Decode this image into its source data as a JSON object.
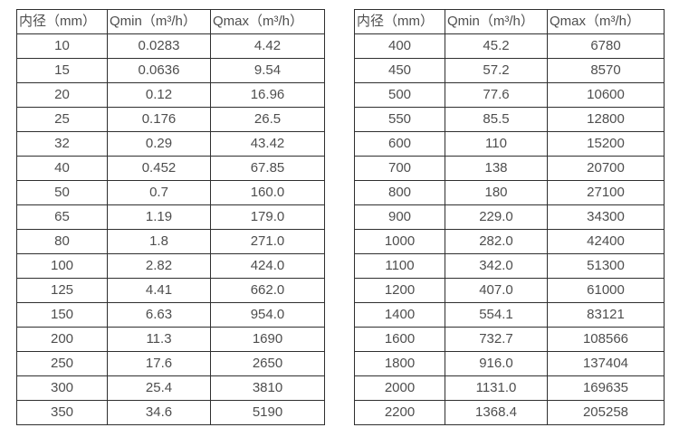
{
  "page": {
    "background_color": "#ffffff",
    "border_color": "#2f2f2f",
    "text_color": "#4e4e4e"
  },
  "tables": [
    {
      "name": "flow-range-table-small-diameters",
      "headers": [
        "内径（mm）",
        "Qmin（m³/h）",
        "Qmax（m³/h）"
      ],
      "rows": [
        [
          "10",
          "0.0283",
          "4.42"
        ],
        [
          "15",
          "0.0636",
          "9.54"
        ],
        [
          "20",
          "0.12",
          "16.96"
        ],
        [
          "25",
          "0.176",
          "26.5"
        ],
        [
          "32",
          "0.29",
          "43.42"
        ],
        [
          "40",
          "0.452",
          "67.85"
        ],
        [
          "50",
          "0.7",
          "160.0"
        ],
        [
          "65",
          "1.19",
          "179.0"
        ],
        [
          "80",
          "1.8",
          "271.0"
        ],
        [
          "100",
          "2.82",
          "424.0"
        ],
        [
          "125",
          "4.41",
          "662.0"
        ],
        [
          "150",
          "6.63",
          "954.0"
        ],
        [
          "200",
          "11.3",
          "1690"
        ],
        [
          "250",
          "17.6",
          "2650"
        ],
        [
          "300",
          "25.4",
          "3810"
        ],
        [
          "350",
          "34.6",
          "5190"
        ]
      ]
    },
    {
      "name": "flow-range-table-large-diameters",
      "headers": [
        "内径（mm）",
        "Qmin（m³/h）",
        "Qmax（m³/h）"
      ],
      "rows": [
        [
          "400",
          "45.2",
          "6780"
        ],
        [
          "450",
          "57.2",
          "8570"
        ],
        [
          "500",
          "77.6",
          "10600"
        ],
        [
          "550",
          "85.5",
          "12800"
        ],
        [
          "600",
          "110",
          "15200"
        ],
        [
          "700",
          "138",
          "20700"
        ],
        [
          "800",
          "180",
          "27100"
        ],
        [
          "900",
          "229.0",
          "34300"
        ],
        [
          "1000",
          "282.0",
          "42400"
        ],
        [
          "1100",
          "342.0",
          "51300"
        ],
        [
          "1200",
          "407.0",
          "61000"
        ],
        [
          "1400",
          "554.1",
          "83121"
        ],
        [
          "1600",
          "732.7",
          "108566"
        ],
        [
          "1800",
          "916.0",
          "137404"
        ],
        [
          "2000",
          "1131.0",
          "169635"
        ],
        [
          "2200",
          "1368.4",
          "205258"
        ]
      ]
    }
  ]
}
